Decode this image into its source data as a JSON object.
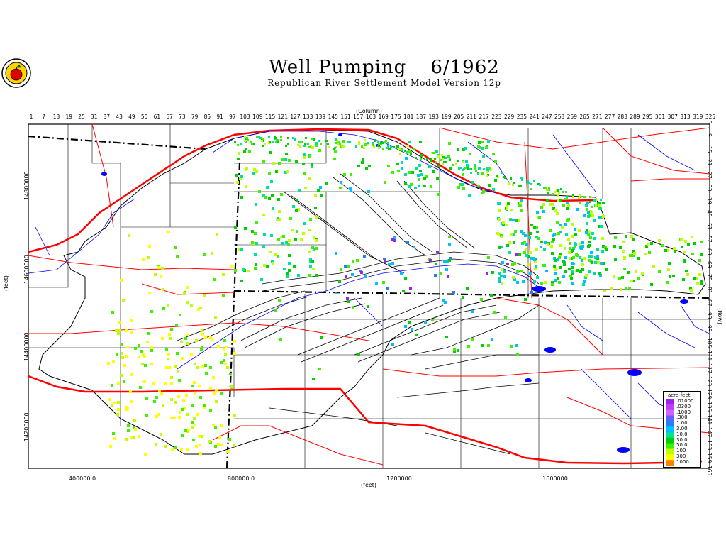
{
  "title": {
    "main": "Well Pumping",
    "date": "6/1962"
  },
  "subtitle": "Republican River Settlement Model Version 12p",
  "axes": {
    "column_title": "(Column)",
    "row_title": "(Row)",
    "x_title": "(feet)",
    "y_title": "(feet)",
    "x_ticks": [
      "400000.0",
      "800000.0",
      "1200000",
      "1600000"
    ],
    "y_ticks": [
      "14800000",
      "14600000",
      "14400000",
      "14200000"
    ],
    "column_numbers": [
      "1",
      "7",
      "13",
      "19",
      "25",
      "31",
      "37",
      "43",
      "49",
      "55",
      "61",
      "67",
      "73",
      "79",
      "85",
      "91",
      "97",
      "103",
      "109",
      "115",
      "121",
      "127",
      "133",
      "139",
      "145",
      "151",
      "157",
      "163",
      "169",
      "175",
      "181",
      "187",
      "193",
      "199",
      "205",
      "211",
      "217",
      "223",
      "229",
      "235",
      "241",
      "247",
      "253",
      "259",
      "265",
      "271",
      "277",
      "283",
      "289",
      "295",
      "301",
      "307",
      "313",
      "319",
      "325"
    ],
    "row_numbers": [
      "3",
      "9",
      "15",
      "21",
      "27",
      "33",
      "39",
      "45",
      "51",
      "57",
      "63",
      "69",
      "75",
      "81",
      "87",
      "93",
      "99",
      "105",
      "111",
      "117",
      "123",
      "129",
      "135",
      "141",
      "147",
      "153",
      "159",
      "165"
    ]
  },
  "legend": {
    "title": "acre-feet",
    "items": [
      {
        "label": ".01000",
        "color": "#a020f0"
      },
      {
        "label": ".0300",
        "color": "#c040f0"
      },
      {
        "label": ".1000",
        "color": "#d060ff"
      },
      {
        "label": ".300",
        "color": "#6060ff"
      },
      {
        "label": "1.00",
        "color": "#2080ff"
      },
      {
        "label": "3.00",
        "color": "#00c0ff"
      },
      {
        "label": "10.0",
        "color": "#00e0a0"
      },
      {
        "label": "30.0",
        "color": "#00d000"
      },
      {
        "label": "50.0",
        "color": "#40f000"
      },
      {
        "label": "100",
        "color": "#c0ff00"
      },
      {
        "label": "300",
        "color": "#ffff00"
      },
      {
        "label": "1000",
        "color": "#ff8000"
      }
    ]
  },
  "colors": {
    "roads": "#ff0000",
    "streams": "#0000ff",
    "boundaries": "#000000",
    "lakes": "#0000ff"
  }
}
